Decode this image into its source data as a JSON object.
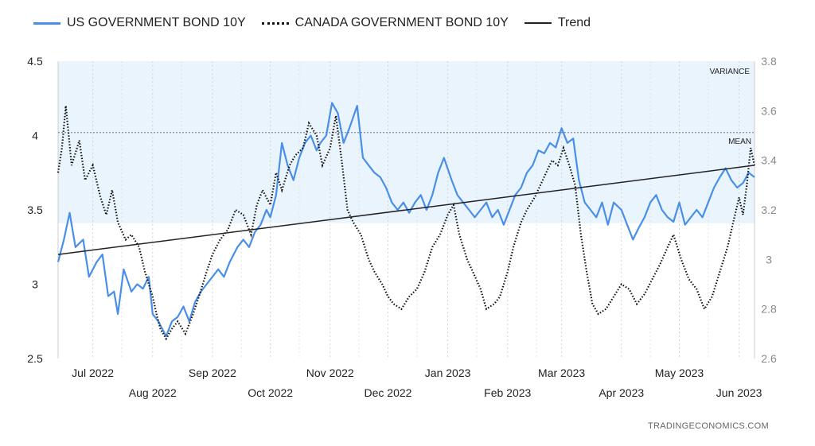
{
  "legend": {
    "us_label": "US GOVERNMENT BOND 10Y",
    "canada_label": "CANADA GOVERNMENT BOND 10Y",
    "trend_label": "Trend"
  },
  "source": "TRADINGECONOMICS.COM",
  "colors": {
    "us": "#4a8fe7",
    "canada": "#111111",
    "trend": "#222222",
    "band": "#eaf4fd"
  },
  "chart_data": {
    "type": "line",
    "left_axis": {
      "ylim": [
        2.5,
        4.5
      ],
      "ticks": [
        "2.5",
        "3",
        "3.5",
        "4",
        "4.5"
      ]
    },
    "right_axis": {
      "ylim": [
        2.6,
        3.8
      ],
      "ticks": [
        "2.6",
        "2.8",
        "3",
        "3.2",
        "3.4",
        "3.6",
        "3.8"
      ]
    },
    "xlim": [
      "2022-06-13",
      "2023-06-09"
    ],
    "x_ticks": [
      {
        "label": "Jul 2022",
        "date": "2022-07-01"
      },
      {
        "label": "Aug 2022",
        "date": "2022-08-01"
      },
      {
        "label": "Sep 2022",
        "date": "2022-09-01"
      },
      {
        "label": "Oct 2022",
        "date": "2022-10-01"
      },
      {
        "label": "Nov 2022",
        "date": "2022-11-01"
      },
      {
        "label": "Dec 2022",
        "date": "2022-12-01"
      },
      {
        "label": "Jan 2023",
        "date": "2023-01-01"
      },
      {
        "label": "Feb 2023",
        "date": "2023-02-01"
      },
      {
        "label": "Mar 2023",
        "date": "2023-03-01"
      },
      {
        "label": "Apr 2023",
        "date": "2023-04-01"
      },
      {
        "label": "May 2023",
        "date": "2023-05-01"
      },
      {
        "label": "Jun 2023",
        "date": "2023-06-01"
      }
    ],
    "annotations": {
      "variance": "VARIANCE",
      "mean": "MEAN"
    },
    "variance_band": [
      3.41,
      4.5
    ],
    "mean_line": 4.02,
    "series": [
      {
        "name": "US GOVERNMENT BOND 10Y",
        "axis": "left",
        "style": "solid",
        "points": [
          [
            "2022-06-13",
            3.15
          ],
          [
            "2022-06-16",
            3.3
          ],
          [
            "2022-06-19",
            3.48
          ],
          [
            "2022-06-22",
            3.25
          ],
          [
            "2022-06-26",
            3.3
          ],
          [
            "2022-06-29",
            3.05
          ],
          [
            "2022-07-03",
            3.15
          ],
          [
            "2022-07-06",
            3.2
          ],
          [
            "2022-07-09",
            2.92
          ],
          [
            "2022-07-12",
            2.95
          ],
          [
            "2022-07-14",
            2.8
          ],
          [
            "2022-07-17",
            3.1
          ],
          [
            "2022-07-21",
            2.95
          ],
          [
            "2022-07-24",
            3.0
          ],
          [
            "2022-07-27",
            2.97
          ],
          [
            "2022-07-30",
            3.05
          ],
          [
            "2022-08-01",
            2.8
          ],
          [
            "2022-08-04",
            2.75
          ],
          [
            "2022-08-08",
            2.65
          ],
          [
            "2022-08-11",
            2.75
          ],
          [
            "2022-08-14",
            2.78
          ],
          [
            "2022-08-17",
            2.85
          ],
          [
            "2022-08-20",
            2.75
          ],
          [
            "2022-08-23",
            2.88
          ],
          [
            "2022-08-26",
            2.95
          ],
          [
            "2022-08-29",
            3.0
          ],
          [
            "2022-09-01",
            3.05
          ],
          [
            "2022-09-04",
            3.1
          ],
          [
            "2022-09-07",
            3.05
          ],
          [
            "2022-09-10",
            3.15
          ],
          [
            "2022-09-14",
            3.25
          ],
          [
            "2022-09-17",
            3.3
          ],
          [
            "2022-09-20",
            3.25
          ],
          [
            "2022-09-23",
            3.35
          ],
          [
            "2022-09-26",
            3.4
          ],
          [
            "2022-09-29",
            3.5
          ],
          [
            "2022-10-01",
            3.45
          ],
          [
            "2022-10-04",
            3.6
          ],
          [
            "2022-10-07",
            3.95
          ],
          [
            "2022-10-10",
            3.8
          ],
          [
            "2022-10-13",
            3.7
          ],
          [
            "2022-10-16",
            3.85
          ],
          [
            "2022-10-19",
            3.95
          ],
          [
            "2022-10-22",
            4.0
          ],
          [
            "2022-10-25",
            3.9
          ],
          [
            "2022-10-27",
            3.95
          ],
          [
            "2022-10-30",
            4.0
          ],
          [
            "2022-11-02",
            4.22
          ],
          [
            "2022-11-05",
            4.15
          ],
          [
            "2022-11-08",
            3.95
          ],
          [
            "2022-11-11",
            4.05
          ],
          [
            "2022-11-15",
            4.2
          ],
          [
            "2022-11-18",
            3.85
          ],
          [
            "2022-11-21",
            3.8
          ],
          [
            "2022-11-24",
            3.75
          ],
          [
            "2022-11-27",
            3.72
          ],
          [
            "2022-11-30",
            3.65
          ],
          [
            "2022-12-03",
            3.55
          ],
          [
            "2022-12-06",
            3.5
          ],
          [
            "2022-12-09",
            3.55
          ],
          [
            "2022-12-12",
            3.48
          ],
          [
            "2022-12-15",
            3.55
          ],
          [
            "2022-12-18",
            3.6
          ],
          [
            "2022-12-21",
            3.5
          ],
          [
            "2022-12-24",
            3.6
          ],
          [
            "2022-12-27",
            3.75
          ],
          [
            "2022-12-30",
            3.85
          ],
          [
            "2023-01-03",
            3.7
          ],
          [
            "2023-01-06",
            3.6
          ],
          [
            "2023-01-09",
            3.55
          ],
          [
            "2023-01-12",
            3.5
          ],
          [
            "2023-01-15",
            3.45
          ],
          [
            "2023-01-18",
            3.5
          ],
          [
            "2023-01-21",
            3.55
          ],
          [
            "2023-01-24",
            3.45
          ],
          [
            "2023-01-27",
            3.5
          ],
          [
            "2023-01-30",
            3.4
          ],
          [
            "2023-02-02",
            3.5
          ],
          [
            "2023-02-05",
            3.6
          ],
          [
            "2023-02-08",
            3.65
          ],
          [
            "2023-02-11",
            3.75
          ],
          [
            "2023-02-14",
            3.8
          ],
          [
            "2023-02-17",
            3.9
          ],
          [
            "2023-02-20",
            3.88
          ],
          [
            "2023-02-23",
            3.95
          ],
          [
            "2023-02-26",
            3.92
          ],
          [
            "2023-03-01",
            4.05
          ],
          [
            "2023-03-04",
            3.95
          ],
          [
            "2023-03-07",
            3.98
          ],
          [
            "2023-03-10",
            3.7
          ],
          [
            "2023-03-13",
            3.55
          ],
          [
            "2023-03-16",
            3.5
          ],
          [
            "2023-03-19",
            3.45
          ],
          [
            "2023-03-22",
            3.55
          ],
          [
            "2023-03-25",
            3.4
          ],
          [
            "2023-03-28",
            3.55
          ],
          [
            "2023-04-01",
            3.5
          ],
          [
            "2023-04-04",
            3.4
          ],
          [
            "2023-04-07",
            3.3
          ],
          [
            "2023-04-10",
            3.38
          ],
          [
            "2023-04-13",
            3.45
          ],
          [
            "2023-04-16",
            3.55
          ],
          [
            "2023-04-19",
            3.6
          ],
          [
            "2023-04-22",
            3.5
          ],
          [
            "2023-04-25",
            3.45
          ],
          [
            "2023-04-28",
            3.42
          ],
          [
            "2023-05-01",
            3.55
          ],
          [
            "2023-05-04",
            3.4
          ],
          [
            "2023-05-07",
            3.45
          ],
          [
            "2023-05-10",
            3.5
          ],
          [
            "2023-05-13",
            3.45
          ],
          [
            "2023-05-16",
            3.55
          ],
          [
            "2023-05-19",
            3.65
          ],
          [
            "2023-05-22",
            3.72
          ],
          [
            "2023-05-25",
            3.78
          ],
          [
            "2023-05-28",
            3.7
          ],
          [
            "2023-05-31",
            3.65
          ],
          [
            "2023-06-03",
            3.68
          ],
          [
            "2023-06-06",
            3.75
          ],
          [
            "2023-06-09",
            3.72
          ]
        ]
      },
      {
        "name": "CANADA GOVERNMENT BOND 10Y",
        "axis": "right",
        "style": "dotted",
        "points": [
          [
            "2022-06-13",
            3.35
          ],
          [
            "2022-06-15",
            3.45
          ],
          [
            "2022-06-17",
            3.62
          ],
          [
            "2022-06-20",
            3.38
          ],
          [
            "2022-06-24",
            3.48
          ],
          [
            "2022-06-27",
            3.32
          ],
          [
            "2022-07-01",
            3.38
          ],
          [
            "2022-07-05",
            3.25
          ],
          [
            "2022-07-08",
            3.18
          ],
          [
            "2022-07-11",
            3.28
          ],
          [
            "2022-07-14",
            3.15
          ],
          [
            "2022-07-18",
            3.08
          ],
          [
            "2022-07-21",
            3.1
          ],
          [
            "2022-07-25",
            3.05
          ],
          [
            "2022-07-28",
            2.95
          ],
          [
            "2022-08-01",
            2.85
          ],
          [
            "2022-08-03",
            2.78
          ],
          [
            "2022-08-05",
            2.72
          ],
          [
            "2022-08-08",
            2.68
          ],
          [
            "2022-08-11",
            2.72
          ],
          [
            "2022-08-14",
            2.75
          ],
          [
            "2022-08-18",
            2.7
          ],
          [
            "2022-08-22",
            2.78
          ],
          [
            "2022-08-25",
            2.85
          ],
          [
            "2022-08-29",
            2.95
          ],
          [
            "2022-09-01",
            3.02
          ],
          [
            "2022-09-05",
            3.08
          ],
          [
            "2022-09-09",
            3.12
          ],
          [
            "2022-09-13",
            3.2
          ],
          [
            "2022-09-17",
            3.18
          ],
          [
            "2022-09-21",
            3.1
          ],
          [
            "2022-09-24",
            3.22
          ],
          [
            "2022-09-27",
            3.28
          ],
          [
            "2022-10-01",
            3.22
          ],
          [
            "2022-10-04",
            3.35
          ],
          [
            "2022-10-07",
            3.28
          ],
          [
            "2022-10-11",
            3.38
          ],
          [
            "2022-10-14",
            3.42
          ],
          [
            "2022-10-18",
            3.45
          ],
          [
            "2022-10-21",
            3.55
          ],
          [
            "2022-10-25",
            3.5
          ],
          [
            "2022-10-28",
            3.38
          ],
          [
            "2022-11-01",
            3.45
          ],
          [
            "2022-11-04",
            3.58
          ],
          [
            "2022-11-07",
            3.4
          ],
          [
            "2022-11-10",
            3.2
          ],
          [
            "2022-11-13",
            3.15
          ],
          [
            "2022-11-17",
            3.1
          ],
          [
            "2022-11-21",
            3.0
          ],
          [
            "2022-11-24",
            2.95
          ],
          [
            "2022-11-28",
            2.9
          ],
          [
            "2022-12-01",
            2.85
          ],
          [
            "2022-12-04",
            2.82
          ],
          [
            "2022-12-08",
            2.8
          ],
          [
            "2022-12-12",
            2.85
          ],
          [
            "2022-12-16",
            2.88
          ],
          [
            "2022-12-20",
            2.95
          ],
          [
            "2022-12-24",
            3.05
          ],
          [
            "2022-12-28",
            3.1
          ],
          [
            "2023-01-01",
            3.18
          ],
          [
            "2023-01-04",
            3.22
          ],
          [
            "2023-01-07",
            3.1
          ],
          [
            "2023-01-11",
            3.0
          ],
          [
            "2023-01-14",
            2.95
          ],
          [
            "2023-01-18",
            2.88
          ],
          [
            "2023-01-21",
            2.8
          ],
          [
            "2023-01-25",
            2.82
          ],
          [
            "2023-01-28",
            2.85
          ],
          [
            "2023-02-01",
            2.95
          ],
          [
            "2023-02-04",
            3.05
          ],
          [
            "2023-02-08",
            3.15
          ],
          [
            "2023-02-11",
            3.2
          ],
          [
            "2023-02-15",
            3.25
          ],
          [
            "2023-02-18",
            3.3
          ],
          [
            "2023-02-21",
            3.35
          ],
          [
            "2023-02-24",
            3.4
          ],
          [
            "2023-02-27",
            3.38
          ],
          [
            "2023-03-02",
            3.45
          ],
          [
            "2023-03-05",
            3.38
          ],
          [
            "2023-03-08",
            3.3
          ],
          [
            "2023-03-11",
            3.1
          ],
          [
            "2023-03-14",
            2.95
          ],
          [
            "2023-03-17",
            2.82
          ],
          [
            "2023-03-20",
            2.78
          ],
          [
            "2023-03-24",
            2.8
          ],
          [
            "2023-03-28",
            2.85
          ],
          [
            "2023-04-01",
            2.9
          ],
          [
            "2023-04-05",
            2.88
          ],
          [
            "2023-04-09",
            2.82
          ],
          [
            "2023-04-13",
            2.86
          ],
          [
            "2023-04-17",
            2.92
          ],
          [
            "2023-04-21",
            2.98
          ],
          [
            "2023-04-25",
            3.05
          ],
          [
            "2023-04-28",
            3.1
          ],
          [
            "2023-05-02",
            3.0
          ],
          [
            "2023-05-06",
            2.92
          ],
          [
            "2023-05-10",
            2.88
          ],
          [
            "2023-05-14",
            2.8
          ],
          [
            "2023-05-18",
            2.85
          ],
          [
            "2023-05-22",
            2.95
          ],
          [
            "2023-05-26",
            3.05
          ],
          [
            "2023-05-29",
            3.15
          ],
          [
            "2023-06-01",
            3.25
          ],
          [
            "2023-06-03",
            3.18
          ],
          [
            "2023-06-05",
            3.3
          ],
          [
            "2023-06-07",
            3.45
          ],
          [
            "2023-06-09",
            3.38
          ]
        ]
      },
      {
        "name": "Trend",
        "axis": "left",
        "style": "solid",
        "points": [
          [
            "2022-06-13",
            3.2
          ],
          [
            "2023-06-09",
            3.8
          ]
        ]
      }
    ]
  }
}
